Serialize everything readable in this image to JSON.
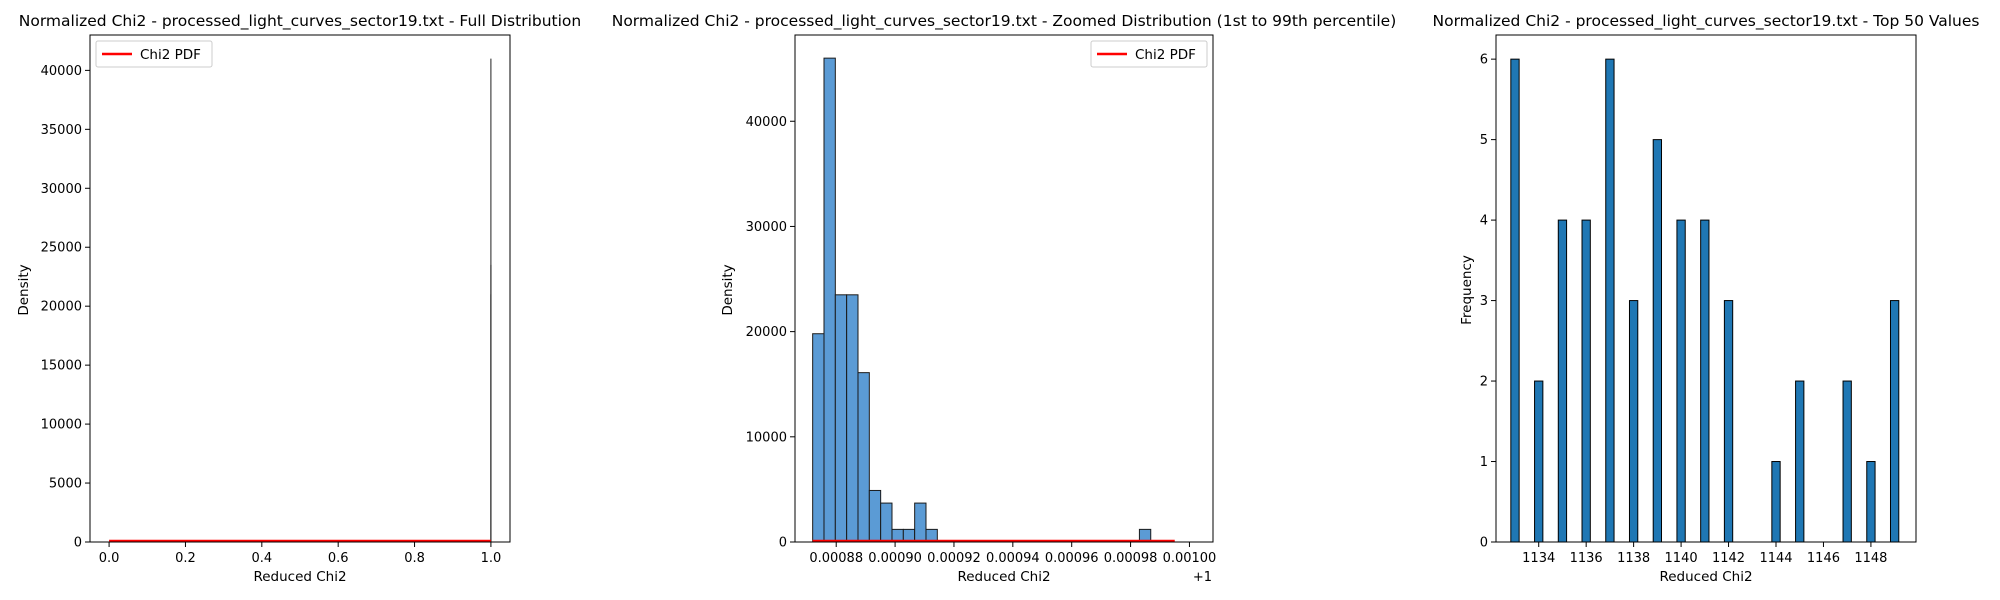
{
  "chart_data": [
    {
      "type": "histogram",
      "title": "Normalized Chi2 - processed_light_curves_sector19.txt - Full Distribution",
      "xlabel": "Reduced Chi2",
      "ylabel": "Density",
      "xlim": [
        -0.05,
        1.05
      ],
      "ylim": [
        0,
        43000
      ],
      "xticks": [
        0.0,
        0.2,
        0.4,
        0.6,
        0.8,
        1.0
      ],
      "xtick_labels": [
        "0.0",
        "0.2",
        "0.4",
        "0.6",
        "0.8",
        "1.0"
      ],
      "yticks": [
        0,
        5000,
        10000,
        15000,
        20000,
        25000,
        30000,
        35000,
        40000
      ],
      "ytick_labels": [
        "0",
        "5000",
        "10000",
        "15000",
        "20000",
        "25000",
        "30000",
        "35000",
        "40000"
      ],
      "spikes": [
        {
          "x": 1.0,
          "y": 41000
        },
        {
          "x": 1.0,
          "y": 23500
        },
        {
          "x": 1.0,
          "y": 21000
        }
      ],
      "pdf_line": {
        "x": [
          0.0,
          1.0
        ],
        "y": [
          0,
          0
        ],
        "color": "#ff0000"
      },
      "legend": {
        "label": "Chi2 PDF",
        "position": "upper left",
        "color": "#ff0000"
      }
    },
    {
      "type": "histogram",
      "title": "Normalized Chi2 - processed_light_curves_sector19.txt - Zoomed Distribution (1st to 99th percentile)",
      "xlabel": "Reduced Chi2",
      "ylabel": "Density",
      "offset_label": "+1",
      "xlim": [
        0.000866,
        0.001008
      ],
      "ylim": [
        0,
        48200
      ],
      "xticks": [
        0.00088,
        0.0009,
        0.00092,
        0.00094,
        0.00096,
        0.00098,
        0.001
      ],
      "xtick_labels": [
        "0.00088",
        "0.00090",
        "0.00092",
        "0.00094",
        "0.00096",
        "0.00098",
        "0.00100"
      ],
      "yticks": [
        0,
        10000,
        20000,
        30000,
        40000
      ],
      "ytick_labels": [
        "0",
        "10000",
        "20000",
        "30000",
        "40000"
      ],
      "bin_width": 3.85e-06,
      "bins": [
        {
          "start": 0.000872,
          "value": 19800
        },
        {
          "start": 0.00087585,
          "value": 46000
        },
        {
          "start": 0.0008797,
          "value": 23500
        },
        {
          "start": 0.00088355,
          "value": 23500
        },
        {
          "start": 0.0008874,
          "value": 16100
        },
        {
          "start": 0.00089125,
          "value": 4900
        },
        {
          "start": 0.0008951,
          "value": 3700
        },
        {
          "start": 0.00089895,
          "value": 1200
        },
        {
          "start": 0.0009028,
          "value": 1200
        },
        {
          "start": 0.00090665,
          "value": 3700
        },
        {
          "start": 0.0009105,
          "value": 1200
        },
        {
          "start": 0.000983,
          "value": 1200
        }
      ],
      "bar_color": "#5b9bd5",
      "pdf_line": {
        "x": [
          0.000872,
          0.000995
        ],
        "y": [
          0,
          0
        ],
        "color": "#ff0000"
      },
      "legend": {
        "label": "Chi2 PDF",
        "position": "upper right",
        "color": "#ff0000"
      }
    },
    {
      "type": "bar",
      "title": "Normalized Chi2 - processed_light_curves_sector19.txt - Top 50 Values",
      "xlabel": "Reduced Chi2",
      "ylabel": "Frequency",
      "xlim": [
        1132.2,
        1149.9
      ],
      "ylim": [
        0,
        6.3
      ],
      "xticks": [
        1134,
        1136,
        1138,
        1140,
        1142,
        1144,
        1146,
        1148
      ],
      "xtick_labels": [
        "1134",
        "1136",
        "1138",
        "1140",
        "1142",
        "1144",
        "1146",
        "1148"
      ],
      "yticks": [
        0,
        1,
        2,
        3,
        4,
        5,
        6
      ],
      "ytick_labels": [
        "0",
        "1",
        "2",
        "3",
        "4",
        "5",
        "6"
      ],
      "bar_width": 0.35,
      "bars": [
        {
          "x": 1133,
          "value": 6
        },
        {
          "x": 1134,
          "value": 2
        },
        {
          "x": 1135,
          "value": 4
        },
        {
          "x": 1136,
          "value": 4
        },
        {
          "x": 1137,
          "value": 6
        },
        {
          "x": 1138,
          "value": 3
        },
        {
          "x": 1139,
          "value": 5
        },
        {
          "x": 1140,
          "value": 4
        },
        {
          "x": 1141,
          "value": 4
        },
        {
          "x": 1142,
          "value": 3
        },
        {
          "x": 1144,
          "value": 1
        },
        {
          "x": 1145,
          "value": 2
        },
        {
          "x": 1147,
          "value": 2
        },
        {
          "x": 1148,
          "value": 1
        },
        {
          "x": 1149,
          "value": 3
        }
      ],
      "bar_color": "#1f77b4"
    }
  ]
}
